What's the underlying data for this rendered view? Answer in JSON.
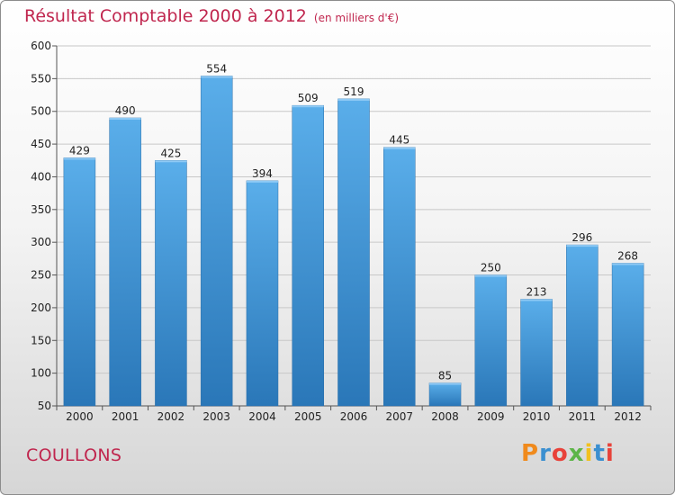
{
  "chart_data": {
    "type": "bar",
    "title": "Résultat Comptable 2000 à 2012",
    "subtitle": "(en milliers d'€)",
    "categories": [
      "2000",
      "2001",
      "2002",
      "2003",
      "2004",
      "2005",
      "2006",
      "2007",
      "2008",
      "2009",
      "2010",
      "2011",
      "2012"
    ],
    "values": [
      429,
      490,
      425,
      554,
      394,
      509,
      519,
      445,
      85,
      250,
      213,
      296,
      268
    ],
    "ylim": [
      50,
      600
    ],
    "yticks": [
      50,
      100,
      150,
      200,
      250,
      300,
      350,
      400,
      450,
      500,
      550,
      600
    ],
    "grid": true,
    "bar_color": "#3d8fd4"
  },
  "commune": "COULLONS",
  "logo": {
    "letters": [
      "P",
      "r",
      "o",
      "x",
      "i",
      "t",
      "i"
    ],
    "colors": [
      "#f08a1c",
      "#3a8fd0",
      "#e8423a",
      "#5db548",
      "#f2c01e",
      "#3a8fd0",
      "#e8423a"
    ]
  }
}
